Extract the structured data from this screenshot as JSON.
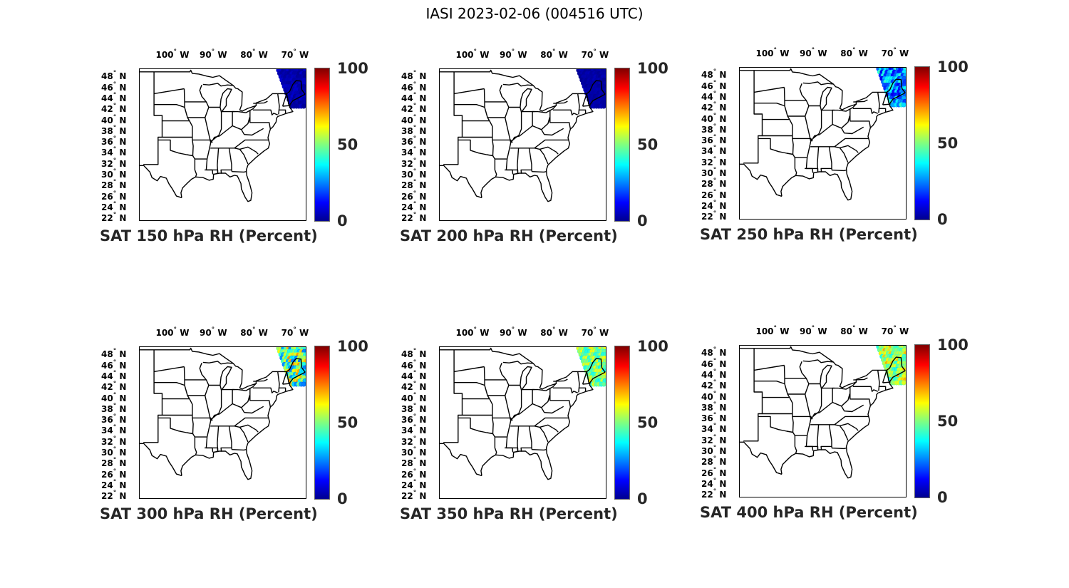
{
  "title": "IASI 2023-02-06 (004516 UTC)",
  "lon_ticks": [
    {
      "deg": "100",
      "hem": "W"
    },
    {
      "deg": "90",
      "hem": "W"
    },
    {
      "deg": "80",
      "hem": "W"
    },
    {
      "deg": "70",
      "hem": "W"
    }
  ],
  "lat_ticks": [
    {
      "deg": "48",
      "hem": "N"
    },
    {
      "deg": "46",
      "hem": "N"
    },
    {
      "deg": "44",
      "hem": "N"
    },
    {
      "deg": "42",
      "hem": "N"
    },
    {
      "deg": "40",
      "hem": "N"
    },
    {
      "deg": "38",
      "hem": "N"
    },
    {
      "deg": "36",
      "hem": "N"
    },
    {
      "deg": "34",
      "hem": "N"
    },
    {
      "deg": "32",
      "hem": "N"
    },
    {
      "deg": "30",
      "hem": "N"
    },
    {
      "deg": "28",
      "hem": "N"
    },
    {
      "deg": "26",
      "hem": "N"
    },
    {
      "deg": "24",
      "hem": "N"
    },
    {
      "deg": "22",
      "hem": "N"
    }
  ],
  "colorbar": {
    "ticks": [
      "0",
      "50",
      "100"
    ],
    "min": 0,
    "max": 100,
    "colormap": "jet"
  },
  "map": {
    "projection": "mercator-like",
    "lon_range": [
      -107.5,
      -66.5
    ],
    "lat_range": [
      21.5,
      49.5
    ],
    "region": "Eastern and Central United States with state boundaries"
  },
  "panels": [
    {
      "title": "SAT 150 hPa RH (Percent)",
      "rh_level": "low",
      "rh_approx": [
        2,
        8
      ]
    },
    {
      "title": "SAT 200 hPa RH (Percent)",
      "rh_level": "low",
      "rh_approx": [
        2,
        6
      ]
    },
    {
      "title": "SAT 250 hPa RH (Percent)",
      "rh_level": "low-mid",
      "rh_approx": [
        10,
        45
      ]
    },
    {
      "title": "SAT 300 hPa RH (Percent)",
      "rh_level": "mid",
      "rh_approx": [
        25,
        75
      ]
    },
    {
      "title": "SAT 350 hPa RH (Percent)",
      "rh_level": "mid",
      "rh_approx": [
        40,
        65
      ]
    },
    {
      "title": "SAT 400 hPa RH (Percent)",
      "rh_level": "mid-high",
      "rh_approx": [
        40,
        72
      ]
    }
  ]
}
